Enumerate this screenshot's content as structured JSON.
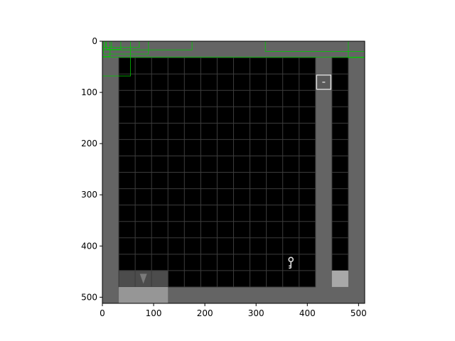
{
  "figure": {
    "x_ticks": [
      "0",
      "100",
      "200",
      "300",
      "400",
      "500"
    ],
    "y_ticks": [
      "0",
      "100",
      "200",
      "300",
      "400",
      "500"
    ]
  },
  "colors": {
    "background": "#ffffff",
    "wall": "#646464",
    "floor": "#000000",
    "grid_line": "#3c3c3c",
    "overlay_box": "#00c800",
    "item": "#dcdcdc",
    "dark_tile": "#4c4c4c",
    "light_tile": "#969696",
    "door_tile": "#a8a8a8"
  },
  "scene": {
    "world_extent": [
      0,
      512
    ],
    "grid_cell_size": 32,
    "floor_region": {
      "x": [
        32,
        416
      ],
      "y": [
        32,
        480
      ]
    },
    "corridor_region": {
      "x": [
        448,
        480
      ],
      "y": [
        32,
        448
      ]
    },
    "door_tile": {
      "x": [
        448,
        480
      ],
      "y": [
        448,
        480
      ]
    },
    "key_item": {
      "x": 368,
      "y": 432,
      "icon": "key-icon"
    },
    "sign_item": {
      "x": 432,
      "y": 80,
      "icon": "sign-icon"
    },
    "inventory_slots": [
      {
        "x": [
          32,
          64
        ],
        "y": [
          448,
          480
        ],
        "tone": "dark"
      },
      {
        "x": [
          64,
          96
        ],
        "y": [
          448,
          480
        ],
        "tone": "dark",
        "icon": "triangle-down-icon"
      },
      {
        "x": [
          96,
          128
        ],
        "y": [
          448,
          480
        ],
        "tone": "dark"
      }
    ],
    "inventory_bar": {
      "x": [
        32,
        128
      ],
      "y": [
        480,
        512
      ]
    },
    "overlay_boxes": [
      {
        "x": [
          0,
          18
        ],
        "y": [
          0,
          12
        ]
      },
      {
        "x": [
          6,
          72
        ],
        "y": [
          0,
          12
        ]
      },
      {
        "x": [
          8,
          36
        ],
        "y": [
          0,
          16
        ]
      },
      {
        "x": [
          2,
          90
        ],
        "y": [
          0,
          25
        ]
      },
      {
        "x": [
          0,
          175
        ],
        "y": [
          0,
          17
        ]
      },
      {
        "x": [
          0,
          15
        ],
        "y": [
          0,
          30
        ]
      },
      {
        "x": [
          0,
          55
        ],
        "y": [
          0,
          68
        ]
      },
      {
        "x": [
          0,
          512
        ],
        "y": [
          0,
          31
        ]
      },
      {
        "x": [
          318,
          512
        ],
        "y": [
          0,
          20
        ]
      },
      {
        "x": [
          480,
          512
        ],
        "y": [
          0,
          32
        ]
      }
    ]
  }
}
